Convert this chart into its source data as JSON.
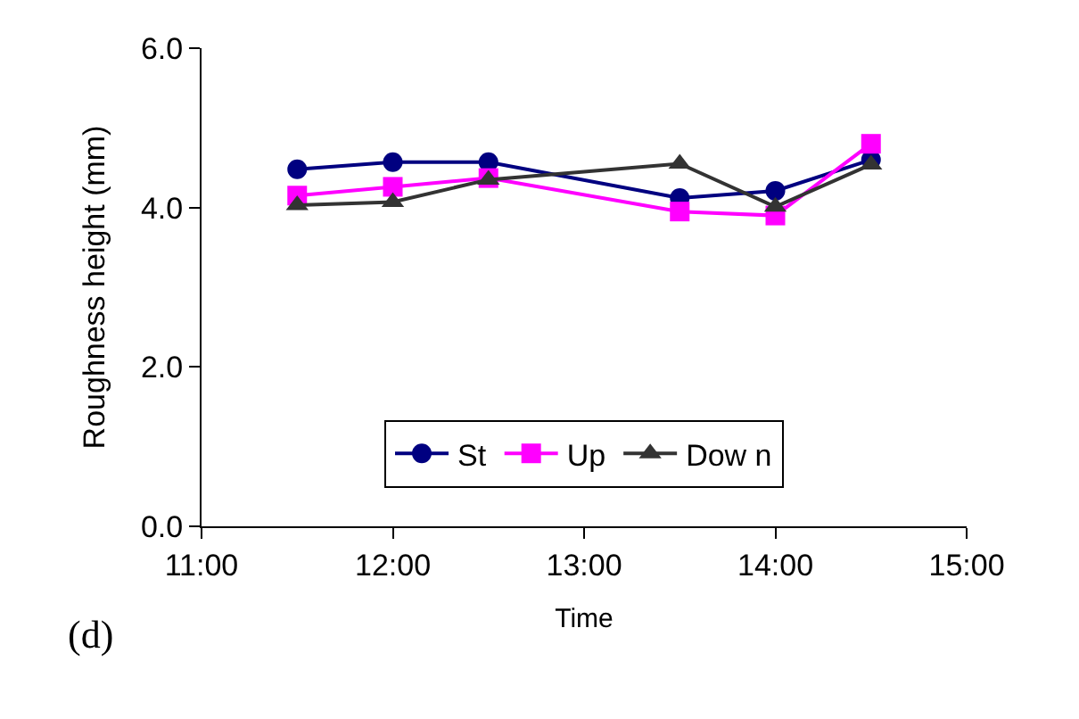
{
  "chart_data": {
    "type": "line",
    "xlabel": "Time",
    "ylabel": "Roughness height (mm)",
    "x": [
      11.5,
      12,
      12.5,
      13.5,
      14,
      14.5
    ],
    "series": [
      {
        "name": "St",
        "color": "#000080",
        "marker": "circle",
        "values": [
          4.48,
          4.57,
          4.57,
          4.12,
          4.21,
          4.6
        ]
      },
      {
        "name": "Up",
        "color": "#ff00ff",
        "marker": "square",
        "values": [
          4.15,
          4.26,
          4.37,
          3.95,
          3.9,
          4.8
        ]
      },
      {
        "name": "Dow n",
        "color": "#333333",
        "marker": "triangle",
        "values": [
          4.03,
          4.07,
          4.35,
          4.55,
          4.01,
          4.54
        ]
      }
    ],
    "xlim": [
      11,
      15
    ],
    "xticks": [
      {
        "value": 11,
        "label": "11:00"
      },
      {
        "value": 12,
        "label": "12:00"
      },
      {
        "value": 13,
        "label": "13:00"
      },
      {
        "value": 14,
        "label": "14:00"
      },
      {
        "value": 15,
        "label": "15:00"
      }
    ],
    "ylim": [
      0,
      6
    ],
    "yticks": [
      {
        "value": 0,
        "label": "0.0"
      },
      {
        "value": 2,
        "label": "2.0"
      },
      {
        "value": 4,
        "label": "4.0"
      },
      {
        "value": 6,
        "label": "6.0"
      }
    ],
    "legend": "bottom",
    "line_style": "solid",
    "annotations": [
      "(d)"
    ]
  }
}
